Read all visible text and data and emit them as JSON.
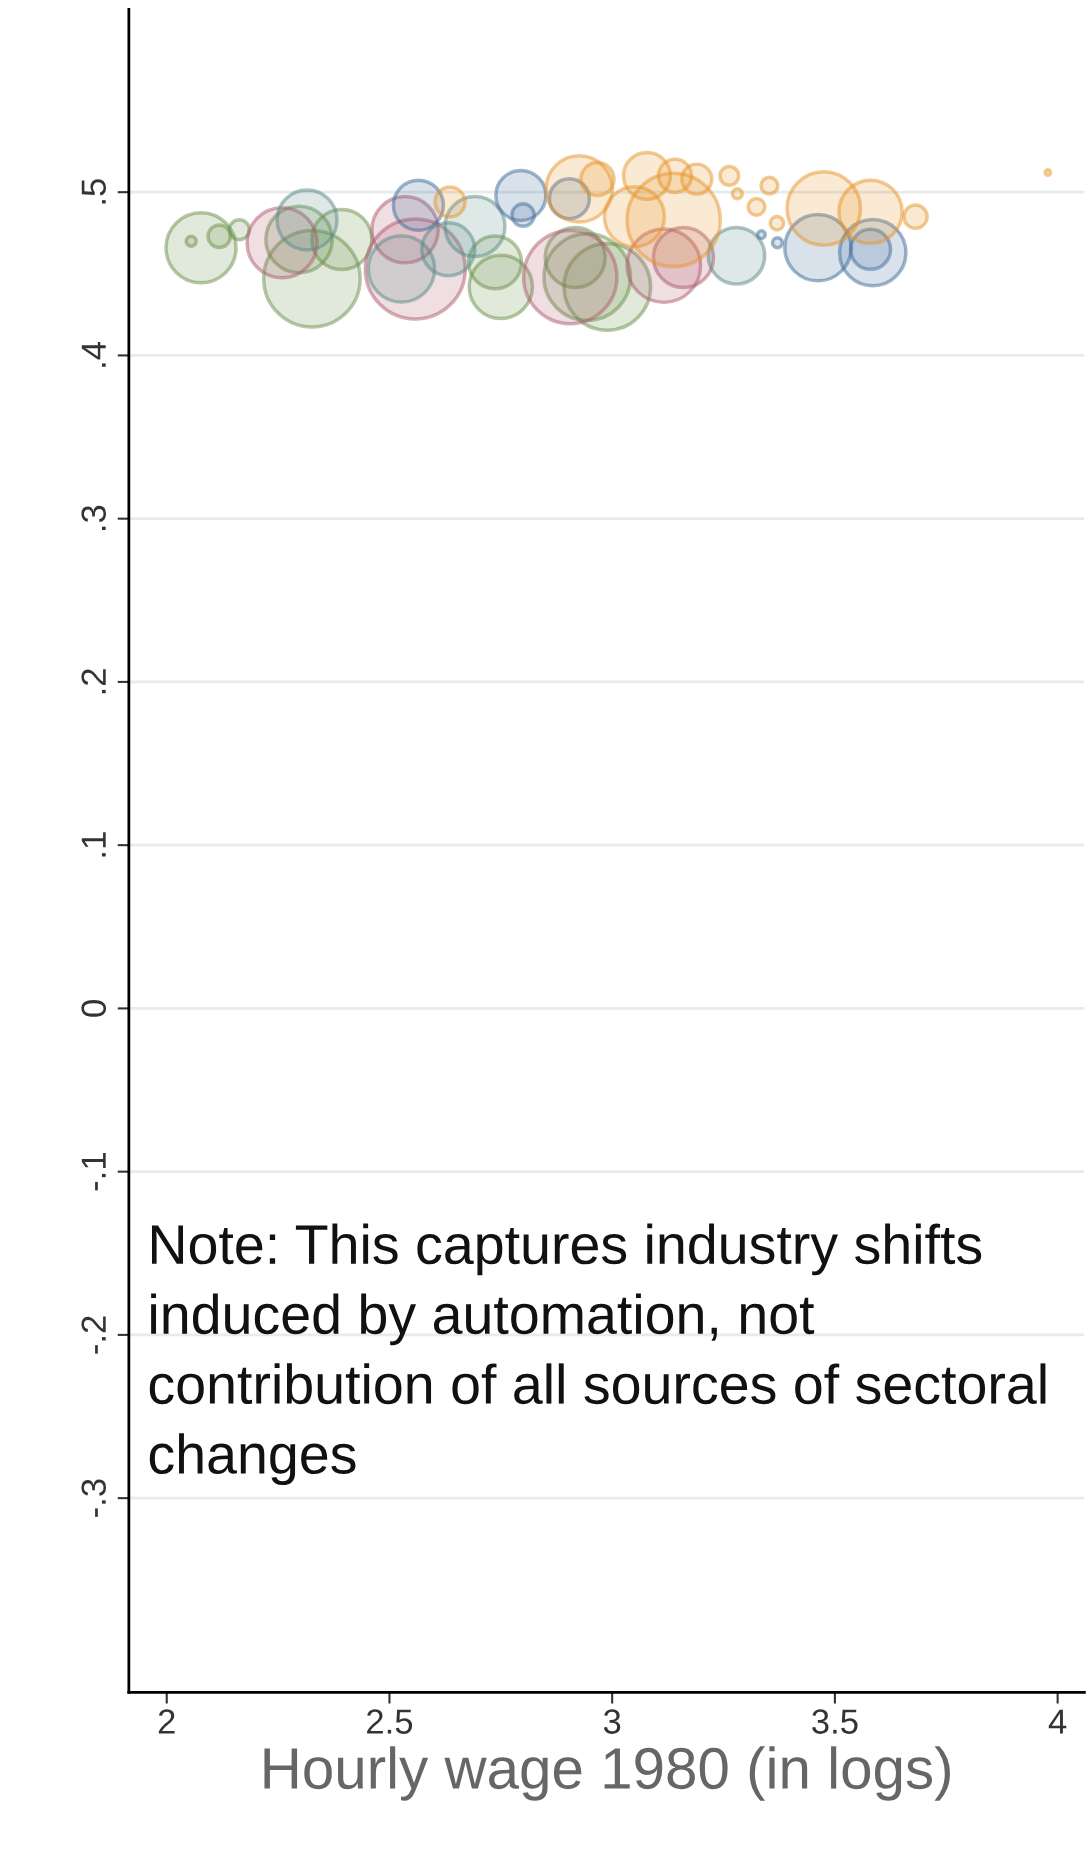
{
  "chart_data": {
    "type": "bubble",
    "xlabel": "Hourly wage 1980 (in logs)",
    "xlim": [
      1.915,
      4.06
    ],
    "xticks": [
      2,
      2.5,
      3,
      3.5,
      4
    ],
    "ylim": [
      -0.419,
      0.612
    ],
    "yticks": [
      {
        "value": -0.3,
        "label": "-.3"
      },
      {
        "value": -0.2,
        "label": "-.2"
      },
      {
        "value": -0.1,
        "label": "-.1"
      },
      0,
      {
        "value": 0.1,
        "label": ".1"
      },
      {
        "value": 0.2,
        "label": ".2"
      },
      {
        "value": 0.3,
        "label": ".3"
      },
      {
        "value": 0.4,
        "label": ".4"
      },
      {
        "value": 0.5,
        "label": ".5"
      }
    ],
    "grid": "y",
    "legend": false,
    "annotations": [
      "Note: This captures industry shifts induced by automation, not contribution of all sources of sectoral changes"
    ],
    "series": [
      {
        "color": "#6b8f4a",
        "x": [
          2.077,
          2.055,
          2.118,
          2.163,
          2.297,
          2.326,
          2.393,
          2.75,
          2.737,
          2.917,
          2.944,
          2.989
        ],
        "values": [
          0.466,
          0.47,
          0.473,
          0.477,
          0.471,
          0.447,
          0.471,
          0.442,
          0.457,
          0.46,
          0.448,
          0.442
        ],
        "sizes": [
          0.49,
          0.01,
          0.05,
          0.04,
          0.44,
          0.93,
          0.36,
          0.4,
          0.28,
          0.36,
          0.75,
          0.75
        ]
      },
      {
        "color": "#b05a70",
        "x": [
          2.259,
          2.535,
          2.558,
          2.906,
          3.116,
          3.16
        ],
        "values": [
          0.469,
          0.477,
          0.453,
          0.448,
          0.455,
          0.46
        ],
        "sizes": [
          0.49,
          0.44,
          1,
          0.87,
          0.54,
          0.36
        ]
      },
      {
        "color": "#5a8a87",
        "x": [
          2.315,
          2.527,
          2.632,
          2.692,
          3.279
        ],
        "values": [
          0.483,
          0.453,
          0.465,
          0.479,
          0.461
        ],
        "sizes": [
          0.36,
          0.44,
          0.28,
          0.36,
          0.32
        ]
      },
      {
        "color": "#3f6b9a",
        "x": [
          2.565,
          2.795,
          2.8,
          2.904,
          3.335,
          3.371,
          3.462,
          3.585,
          3.58
        ],
        "values": [
          0.492,
          0.498,
          0.486,
          0.496,
          0.474,
          0.469,
          0.466,
          0.463,
          0.465
        ],
        "sizes": [
          0.25,
          0.25,
          0.05,
          0.16,
          0.006,
          0.01,
          0.44,
          0.44,
          0.16
        ]
      },
      {
        "color": "#e8942a",
        "x": [
          2.636,
          2.926,
          2.967,
          3.078,
          3.141,
          3.19,
          3.263,
          3.138,
          3.05,
          3.324,
          3.353,
          3.37,
          3.281,
          3.475,
          3.58,
          3.681,
          3.978
        ],
        "values": [
          0.494,
          0.502,
          0.508,
          0.51,
          0.51,
          0.508,
          0.51,
          0.483,
          0.485,
          0.491,
          0.504,
          0.481,
          0.499,
          0.49,
          0.488,
          0.485,
          0.512
        ],
        "sizes": [
          0.09,
          0.44,
          0.11,
          0.22,
          0.11,
          0.09,
          0.035,
          0.87,
          0.36,
          0.028,
          0.028,
          0.018,
          0.01,
          0.54,
          0.4,
          0.054,
          0.003
        ]
      }
    ]
  }
}
